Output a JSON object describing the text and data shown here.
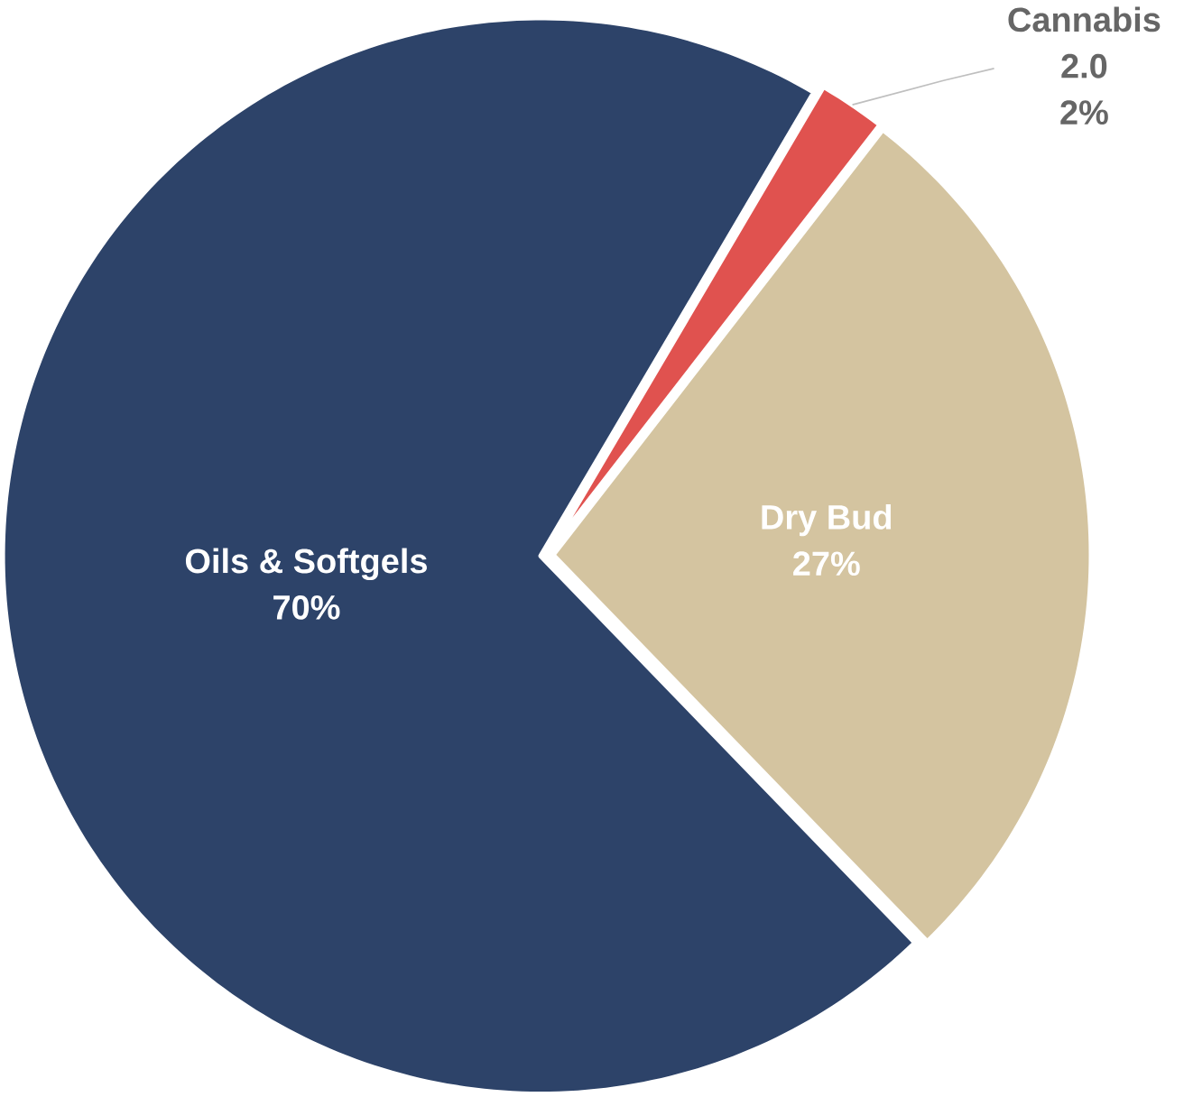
{
  "chart_data": {
    "type": "pie",
    "categories": [
      "Cannabis 2.0",
      "Dry Bud",
      "Oils & Softgels"
    ],
    "values": [
      2,
      27,
      70
    ],
    "colors": [
      "#e0524f",
      "#d4c4a0",
      "#2d4369"
    ],
    "value_labels": [
      "2%",
      "27%",
      "70%"
    ]
  }
}
